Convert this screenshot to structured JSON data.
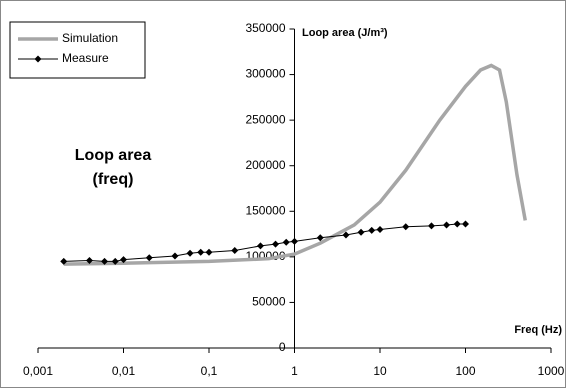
{
  "chart_data": {
    "type": "line",
    "xscale": "log",
    "annotation": [
      "Loop area",
      "(freq)"
    ],
    "xlabel": "Freq (Hz)",
    "ylabel": "Loop area (J/m³)",
    "xlim": [
      0.001,
      1000
    ],
    "ylim": [
      0,
      350000
    ],
    "xticks": [
      {
        "value": 0.001,
        "label": "0,001"
      },
      {
        "value": 0.01,
        "label": "0,01"
      },
      {
        "value": 0.1,
        "label": "0,1"
      },
      1,
      10,
      100,
      1000
    ],
    "yticks": [
      0,
      50000,
      100000,
      150000,
      200000,
      250000,
      300000,
      350000
    ],
    "y_axis_at_x": 1,
    "legend": "top-left",
    "series": [
      {
        "name": "Simulation",
        "color": "#a6a6a6",
        "marker": "none",
        "x": [
          0.002,
          0.01,
          0.1,
          0.5,
          1,
          2,
          5,
          10,
          20,
          50,
          100,
          150,
          200,
          250,
          300,
          400,
          500
        ],
        "values": [
          92000,
          93000,
          95000,
          98000,
          103000,
          115000,
          135000,
          160000,
          195000,
          250000,
          287000,
          305000,
          310000,
          305000,
          270000,
          190000,
          140000
        ]
      },
      {
        "name": "Measure",
        "color": "#000000",
        "marker": "diamond",
        "x": [
          0.002,
          0.004,
          0.006,
          0.008,
          0.01,
          0.02,
          0.04,
          0.06,
          0.08,
          0.1,
          0.2,
          0.4,
          0.6,
          0.8,
          1,
          2,
          4,
          6,
          8,
          10,
          20,
          40,
          60,
          80,
          100
        ],
        "values": [
          95000,
          96000,
          95000,
          95000,
          97000,
          99000,
          101000,
          104000,
          105000,
          105000,
          107000,
          112000,
          114000,
          116000,
          117000,
          121000,
          124000,
          127000,
          129000,
          130000,
          133000,
          134000,
          135000,
          136000,
          136000
        ]
      }
    ]
  }
}
